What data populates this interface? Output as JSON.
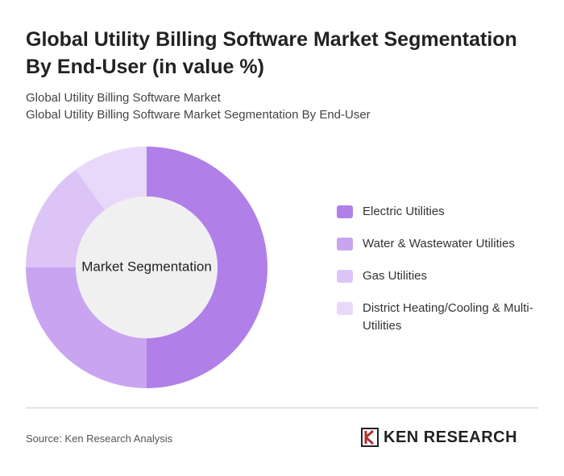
{
  "chart_data": {
    "type": "donut",
    "title": "Global Utility Billing Software Market Segmentation By End-User (in value %)",
    "subtitle": [
      "Global Utility Billing Software Market",
      "Global Utility Billing Software Market Segmentation By End-User"
    ],
    "center_label": "Market Segmentation",
    "categories": [
      "Electric Utilities",
      "Water & Wastewater Utilities",
      "Gas Utilities",
      "District Heating/Cooling & Multi-Utilities"
    ],
    "values": [
      50,
      25,
      15,
      10
    ],
    "colors": [
      "#b07fe8",
      "#c9a4f0",
      "#dcc5f6",
      "#e8d8f9"
    ],
    "source": "Source: Ken Research Analysis",
    "logo": "KEN RESEARCH"
  }
}
